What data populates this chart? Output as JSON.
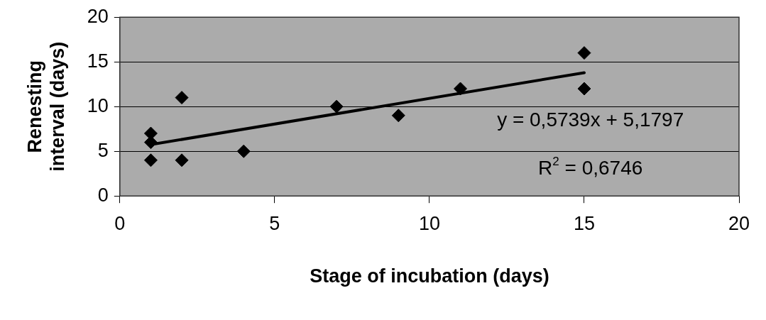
{
  "chart_data": {
    "type": "scatter",
    "xlabel": "Stage of incubation (days)",
    "ylabel": "Renesting interval (days)",
    "series": [
      {
        "color": "#000000",
        "x": [
          1,
          1,
          1,
          2,
          2,
          4,
          7,
          9,
          11,
          15,
          15
        ],
        "values": [
          7,
          6,
          4,
          11,
          4,
          5,
          10,
          9,
          12,
          16,
          12
        ]
      },
      {
        "type": "line",
        "color": "#000000",
        "marker": "none",
        "x": [
          1,
          15
        ],
        "values": [
          5.75,
          13.79
        ]
      }
    ],
    "xlim": [
      0,
      20
    ],
    "xticks": [
      0,
      5,
      10,
      15,
      20
    ],
    "ylim": [
      0,
      20
    ],
    "yticks": [
      0,
      5,
      10,
      15,
      20
    ],
    "grid": "y",
    "legend": false,
    "marker": "diamond",
    "annotations": [
      "y = 0,5739x + 5,1797",
      "R$^{2}$ = 0,6746"
    ]
  }
}
